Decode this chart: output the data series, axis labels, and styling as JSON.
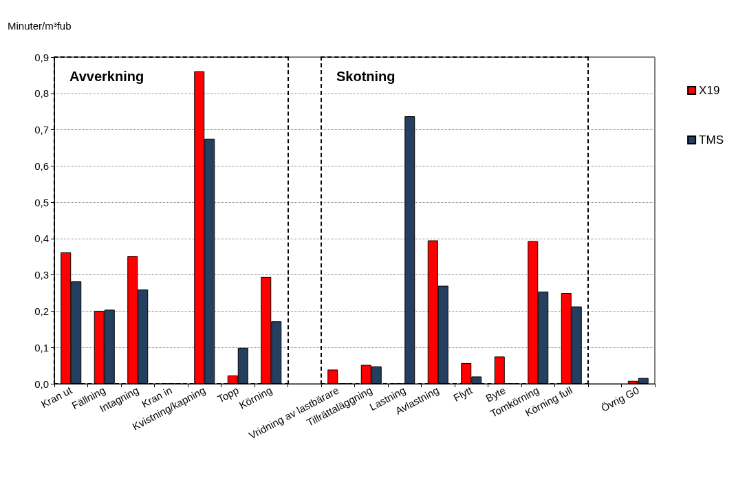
{
  "chart_data": {
    "type": "bar",
    "ylabel": "Minuter/m³fub",
    "categories": [
      "Kran ut",
      "Fällning",
      "Intagning",
      "Kran in",
      "Kvistning/kapning",
      "Topp",
      "Körning",
      null,
      "Vridning av lastbärare",
      "Tillrättaläggning",
      "Lastning",
      "Avlastning",
      "Flytt",
      "Byte",
      "Tomkörning",
      "Körning full",
      null,
      "Övrig G0"
    ],
    "series": [
      {
        "name": "X19",
        "color": "#ff0000",
        "values": [
          0.362,
          0.201,
          0.352,
          0,
          0.861,
          0.023,
          0.294,
          null,
          0.039,
          0.052,
          0,
          0.395,
          0.057,
          0.075,
          0.393,
          0.25,
          null,
          0.008
        ]
      },
      {
        "name": "TMS",
        "color": "#243f60",
        "values": [
          0.282,
          0.204,
          0.26,
          0,
          0.675,
          0.099,
          0.172,
          null,
          0,
          0.048,
          0.737,
          0.27,
          0.02,
          0,
          0.254,
          0.213,
          null,
          0.016
        ]
      }
    ],
    "ylim": [
      0,
      0.9
    ],
    "yticks": [
      {
        "value": 0,
        "label": "0,0"
      },
      {
        "value": 0.1,
        "label": "0,1"
      },
      {
        "value": 0.2,
        "label": "0,2"
      },
      {
        "value": 0.3,
        "label": "0,3"
      },
      {
        "value": 0.4,
        "label": "0,4"
      },
      {
        "value": 0.5,
        "label": "0,5"
      },
      {
        "value": 0.6,
        "label": "0,6"
      },
      {
        "value": 0.7,
        "label": "0,7"
      },
      {
        "value": 0.8,
        "label": "0,8"
      },
      {
        "value": 0.9,
        "label": "0,9"
      }
    ],
    "annotations": [
      "Avverkning",
      "Skotning"
    ],
    "grid": "y",
    "legend": "right"
  }
}
